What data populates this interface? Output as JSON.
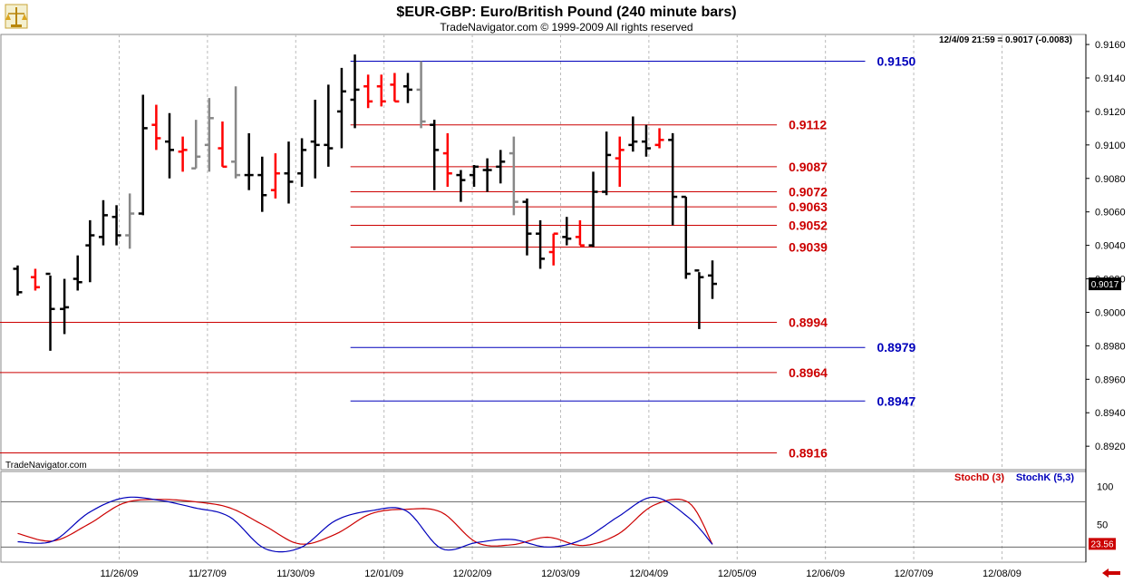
{
  "header": {
    "title": "$EUR-GBP:  Euro/British Pound  (240 minute bars)",
    "copyright": "TradeNavigator.com © 1999-2009 All rights reserved",
    "readout": "12/4/09 21:59 = 0.9017 (-0.0083)",
    "watermark": "TradeNavigator.com"
  },
  "colors": {
    "up": "#000000",
    "down": "#ff0000",
    "neutral": "#888888",
    "red_line": "#cc0000",
    "blue_line": "#0000bb"
  },
  "chart_data": [
    {
      "type": "ohlc",
      "title": "$EUR-GBP:  Euro/British Pound  (240 minute bars)",
      "ylim": [
        0.8906,
        0.9166
      ],
      "xlim": [
        0,
        123
      ],
      "yticks": [
        "0.8920",
        "0.8940",
        "0.8960",
        "0.8980",
        "0.9000",
        "0.9020",
        "0.9040",
        "0.9060",
        "0.9080",
        "0.9100",
        "0.9120",
        "0.9140",
        "0.9160"
      ],
      "xticks": [
        {
          "x": 13.5,
          "label": "11/26/09"
        },
        {
          "x": 23.5,
          "label": "11/27/09"
        },
        {
          "x": 33.5,
          "label": "11/30/09"
        },
        {
          "x": 43.5,
          "label": "12/01/09"
        },
        {
          "x": 53.5,
          "label": "12/02/09"
        },
        {
          "x": 63.5,
          "label": "12/03/09"
        },
        {
          "x": 73.5,
          "label": "12/04/09"
        },
        {
          "x": 83.5,
          "label": "12/05/09"
        },
        {
          "x": 93.5,
          "label": "12/06/09"
        },
        {
          "x": 103.5,
          "label": "12/07/09"
        },
        {
          "x": 113.5,
          "label": "12/08/09"
        }
      ],
      "last_value": "0.9017",
      "bars": [
        {
          "x": 2,
          "o": 0.9026,
          "h": 0.9028,
          "l": 0.901,
          "c": 0.9012,
          "col": "up"
        },
        {
          "x": 4,
          "o": 0.9021,
          "h": 0.9026,
          "l": 0.9013,
          "c": 0.9015,
          "col": "down"
        },
        {
          "x": 5.7,
          "o": 0.9023,
          "h": 0.9022,
          "l": 0.8977,
          "c": 0.9002,
          "col": "up"
        },
        {
          "x": 7.3,
          "o": 0.9002,
          "h": 0.902,
          "l": 0.8987,
          "c": 0.9003,
          "col": "up"
        },
        {
          "x": 8.8,
          "o": 0.902,
          "h": 0.9034,
          "l": 0.9013,
          "c": 0.9018,
          "col": "up"
        },
        {
          "x": 10.2,
          "o": 0.904,
          "h": 0.9055,
          "l": 0.9018,
          "c": 0.9046,
          "col": "up"
        },
        {
          "x": 11.7,
          "o": 0.9045,
          "h": 0.9067,
          "l": 0.904,
          "c": 0.9058,
          "col": "up"
        },
        {
          "x": 13.2,
          "o": 0.9057,
          "h": 0.9064,
          "l": 0.904,
          "c": 0.9046,
          "col": "up"
        },
        {
          "x": 14.7,
          "o": 0.9046,
          "h": 0.9071,
          "l": 0.9038,
          "c": 0.9059,
          "col": "neutral"
        },
        {
          "x": 16.2,
          "o": 0.9059,
          "h": 0.913,
          "l": 0.9058,
          "c": 0.911,
          "col": "up"
        },
        {
          "x": 17.7,
          "o": 0.9112,
          "h": 0.9124,
          "l": 0.9097,
          "c": 0.9104,
          "col": "down"
        },
        {
          "x": 19.2,
          "o": 0.9102,
          "h": 0.9119,
          "l": 0.908,
          "c": 0.9097,
          "col": "up"
        },
        {
          "x": 20.7,
          "o": 0.9096,
          "h": 0.9105,
          "l": 0.9084,
          "c": 0.9097,
          "col": "down"
        },
        {
          "x": 22.2,
          "o": 0.9086,
          "h": 0.9115,
          "l": 0.9086,
          "c": 0.9093,
          "col": "neutral"
        },
        {
          "x": 23.7,
          "o": 0.91,
          "h": 0.9128,
          "l": 0.9084,
          "c": 0.9116,
          "col": "neutral"
        },
        {
          "x": 25.2,
          "o": 0.9098,
          "h": 0.9114,
          "l": 0.9087,
          "c": 0.9087,
          "col": "down"
        },
        {
          "x": 26.7,
          "o": 0.909,
          "h": 0.9135,
          "l": 0.908,
          "c": 0.9082,
          "col": "neutral"
        },
        {
          "x": 28.2,
          "o": 0.9082,
          "h": 0.9107,
          "l": 0.9073,
          "c": 0.9082,
          "col": "up"
        },
        {
          "x": 29.7,
          "o": 0.9082,
          "h": 0.9093,
          "l": 0.906,
          "c": 0.907,
          "col": "up"
        },
        {
          "x": 31.2,
          "o": 0.9073,
          "h": 0.9095,
          "l": 0.9068,
          "c": 0.9083,
          "col": "down"
        },
        {
          "x": 32.7,
          "o": 0.9083,
          "h": 0.9102,
          "l": 0.9065,
          "c": 0.9078,
          "col": "up"
        },
        {
          "x": 34.2,
          "o": 0.9083,
          "h": 0.9104,
          "l": 0.9075,
          "c": 0.9097,
          "col": "up"
        },
        {
          "x": 35.7,
          "o": 0.9102,
          "h": 0.9127,
          "l": 0.908,
          "c": 0.91,
          "col": "up"
        },
        {
          "x": 37.2,
          "o": 0.91,
          "h": 0.9136,
          "l": 0.9087,
          "c": 0.9098,
          "col": "up"
        },
        {
          "x": 38.7,
          "o": 0.912,
          "h": 0.9146,
          "l": 0.9098,
          "c": 0.9132,
          "col": "up"
        },
        {
          "x": 40.2,
          "o": 0.9127,
          "h": 0.9154,
          "l": 0.911,
          "c": 0.9133,
          "col": "up"
        },
        {
          "x": 41.7,
          "o": 0.9135,
          "h": 0.9142,
          "l": 0.9122,
          "c": 0.9126,
          "col": "down"
        },
        {
          "x": 43.2,
          "o": 0.9135,
          "h": 0.9142,
          "l": 0.9123,
          "c": 0.9126,
          "col": "down"
        },
        {
          "x": 44.7,
          "o": 0.9136,
          "h": 0.9143,
          "l": 0.9126,
          "c": 0.9126,
          "col": "down"
        },
        {
          "x": 46.2,
          "o": 0.9135,
          "h": 0.9143,
          "l": 0.9125,
          "c": 0.9133,
          "col": "up"
        },
        {
          "x": 47.7,
          "o": 0.9133,
          "h": 0.915,
          "l": 0.911,
          "c": 0.9114,
          "col": "neutral"
        },
        {
          "x": 49.2,
          "o": 0.9112,
          "h": 0.9115,
          "l": 0.9073,
          "c": 0.9097,
          "col": "up"
        },
        {
          "x": 50.7,
          "o": 0.9095,
          "h": 0.9107,
          "l": 0.9075,
          "c": 0.9083,
          "col": "down"
        },
        {
          "x": 52.2,
          "o": 0.9082,
          "h": 0.9085,
          "l": 0.9066,
          "c": 0.9079,
          "col": "up"
        },
        {
          "x": 53.7,
          "o": 0.9082,
          "h": 0.9088,
          "l": 0.9075,
          "c": 0.9087,
          "col": "up"
        },
        {
          "x": 55.2,
          "o": 0.9085,
          "h": 0.9092,
          "l": 0.9072,
          "c": 0.9085,
          "col": "up"
        },
        {
          "x": 56.7,
          "o": 0.9087,
          "h": 0.9097,
          "l": 0.9077,
          "c": 0.909,
          "col": "up"
        },
        {
          "x": 58.2,
          "o": 0.9095,
          "h": 0.9105,
          "l": 0.9058,
          "c": 0.9066,
          "col": "neutral"
        },
        {
          "x": 59.7,
          "o": 0.9066,
          "h": 0.9068,
          "l": 0.9034,
          "c": 0.9047,
          "col": "up"
        },
        {
          "x": 61.2,
          "o": 0.9047,
          "h": 0.9055,
          "l": 0.9026,
          "c": 0.9032,
          "col": "up"
        },
        {
          "x": 62.7,
          "o": 0.9036,
          "h": 0.9047,
          "l": 0.9028,
          "c": 0.9047,
          "col": "down"
        },
        {
          "x": 64.2,
          "o": 0.9045,
          "h": 0.9057,
          "l": 0.904,
          "c": 0.9044,
          "col": "up"
        },
        {
          "x": 65.7,
          "o": 0.9045,
          "h": 0.9055,
          "l": 0.904,
          "c": 0.904,
          "col": "down"
        },
        {
          "x": 67.2,
          "o": 0.904,
          "h": 0.9084,
          "l": 0.9039,
          "c": 0.9072,
          "col": "up"
        },
        {
          "x": 68.7,
          "o": 0.9072,
          "h": 0.9108,
          "l": 0.907,
          "c": 0.9094,
          "col": "up"
        },
        {
          "x": 70.2,
          "o": 0.9092,
          "h": 0.9105,
          "l": 0.9075,
          "c": 0.9097,
          "col": "down"
        },
        {
          "x": 71.7,
          "o": 0.91,
          "h": 0.9117,
          "l": 0.9096,
          "c": 0.9102,
          "col": "up"
        },
        {
          "x": 73.2,
          "o": 0.9102,
          "h": 0.9112,
          "l": 0.9093,
          "c": 0.9098,
          "col": "up"
        },
        {
          "x": 74.7,
          "o": 0.91,
          "h": 0.911,
          "l": 0.9098,
          "c": 0.9103,
          "col": "down"
        },
        {
          "x": 76.2,
          "o": 0.9103,
          "h": 0.9107,
          "l": 0.9052,
          "c": 0.9069,
          "col": "up"
        },
        {
          "x": 77.7,
          "o": 0.9069,
          "h": 0.9069,
          "l": 0.902,
          "c": 0.9023,
          "col": "up"
        },
        {
          "x": 79.2,
          "o": 0.9025,
          "h": 0.9024,
          "l": 0.899,
          "c": 0.9021,
          "col": "up"
        },
        {
          "x": 80.7,
          "o": 0.9022,
          "h": 0.9031,
          "l": 0.9008,
          "c": 0.9017,
          "col": "up"
        }
      ],
      "levels": [
        {
          "label": "0.9150",
          "price": 0.915,
          "color": "blue_line",
          "x0": 39.7,
          "x1": 98
        },
        {
          "label": "0.9112",
          "price": 0.9112,
          "color": "red_line",
          "x0": 39.7,
          "x1": 88
        },
        {
          "label": "0.9087",
          "price": 0.9087,
          "color": "red_line",
          "x0": 39.7,
          "x1": 88
        },
        {
          "label": "0.9072",
          "price": 0.9072,
          "color": "red_line",
          "x0": 39.7,
          "x1": 88
        },
        {
          "label": "0.9063",
          "price": 0.9063,
          "color": "red_line",
          "x0": 39.7,
          "x1": 88
        },
        {
          "label": "0.9052",
          "price": 0.9052,
          "color": "red_line",
          "x0": 39.7,
          "x1": 88
        },
        {
          "label": "0.9039",
          "price": 0.9039,
          "color": "red_line",
          "x0": 39.7,
          "x1": 88
        },
        {
          "label": "0.8994",
          "price": 0.8994,
          "color": "red_line",
          "x0": 0,
          "x1": 88
        },
        {
          "label": "0.8979",
          "price": 0.8979,
          "color": "blue_line",
          "x0": 39.7,
          "x1": 98
        },
        {
          "label": "0.8964",
          "price": 0.8964,
          "color": "red_line",
          "x0": 0,
          "x1": 88
        },
        {
          "label": "0.8947",
          "price": 0.8947,
          "color": "blue_line",
          "x0": 39.7,
          "x1": 98
        },
        {
          "label": "0.8916",
          "price": 0.8916,
          "color": "red_line",
          "x0": 0,
          "x1": 88
        }
      ]
    },
    {
      "type": "line",
      "ylim": [
        0,
        120
      ],
      "yticks": [
        "100",
        "50"
      ],
      "hlines": [
        80,
        20
      ],
      "legend": [
        "StochD (3)",
        "StochK (5,3)"
      ],
      "last_value": "23.56",
      "series": [
        {
          "name": "StochD (3)",
          "color": "red_line",
          "x": [
            2,
            6,
            10,
            14,
            18,
            22,
            26,
            30,
            34,
            38,
            42,
            46,
            50,
            54,
            58,
            62,
            66,
            70,
            74,
            78,
            80.7
          ],
          "values": [
            38,
            28,
            50,
            78,
            83,
            80,
            72,
            48,
            24,
            37,
            64,
            70,
            66,
            26,
            23,
            33,
            22,
            37,
            75,
            79,
            23.56
          ]
        },
        {
          "name": "StochK (5,3)",
          "color": "blue_line",
          "x": [
            2,
            6,
            10,
            14,
            18,
            22,
            26,
            30,
            34,
            38,
            42,
            46,
            50,
            54,
            58,
            62,
            66,
            70,
            74,
            78,
            80.7
          ],
          "values": [
            27,
            28,
            65,
            85,
            82,
            72,
            60,
            18,
            19,
            55,
            68,
            68,
            18,
            26,
            30,
            20,
            30,
            60,
            86,
            59,
            23.56
          ]
        }
      ]
    }
  ]
}
